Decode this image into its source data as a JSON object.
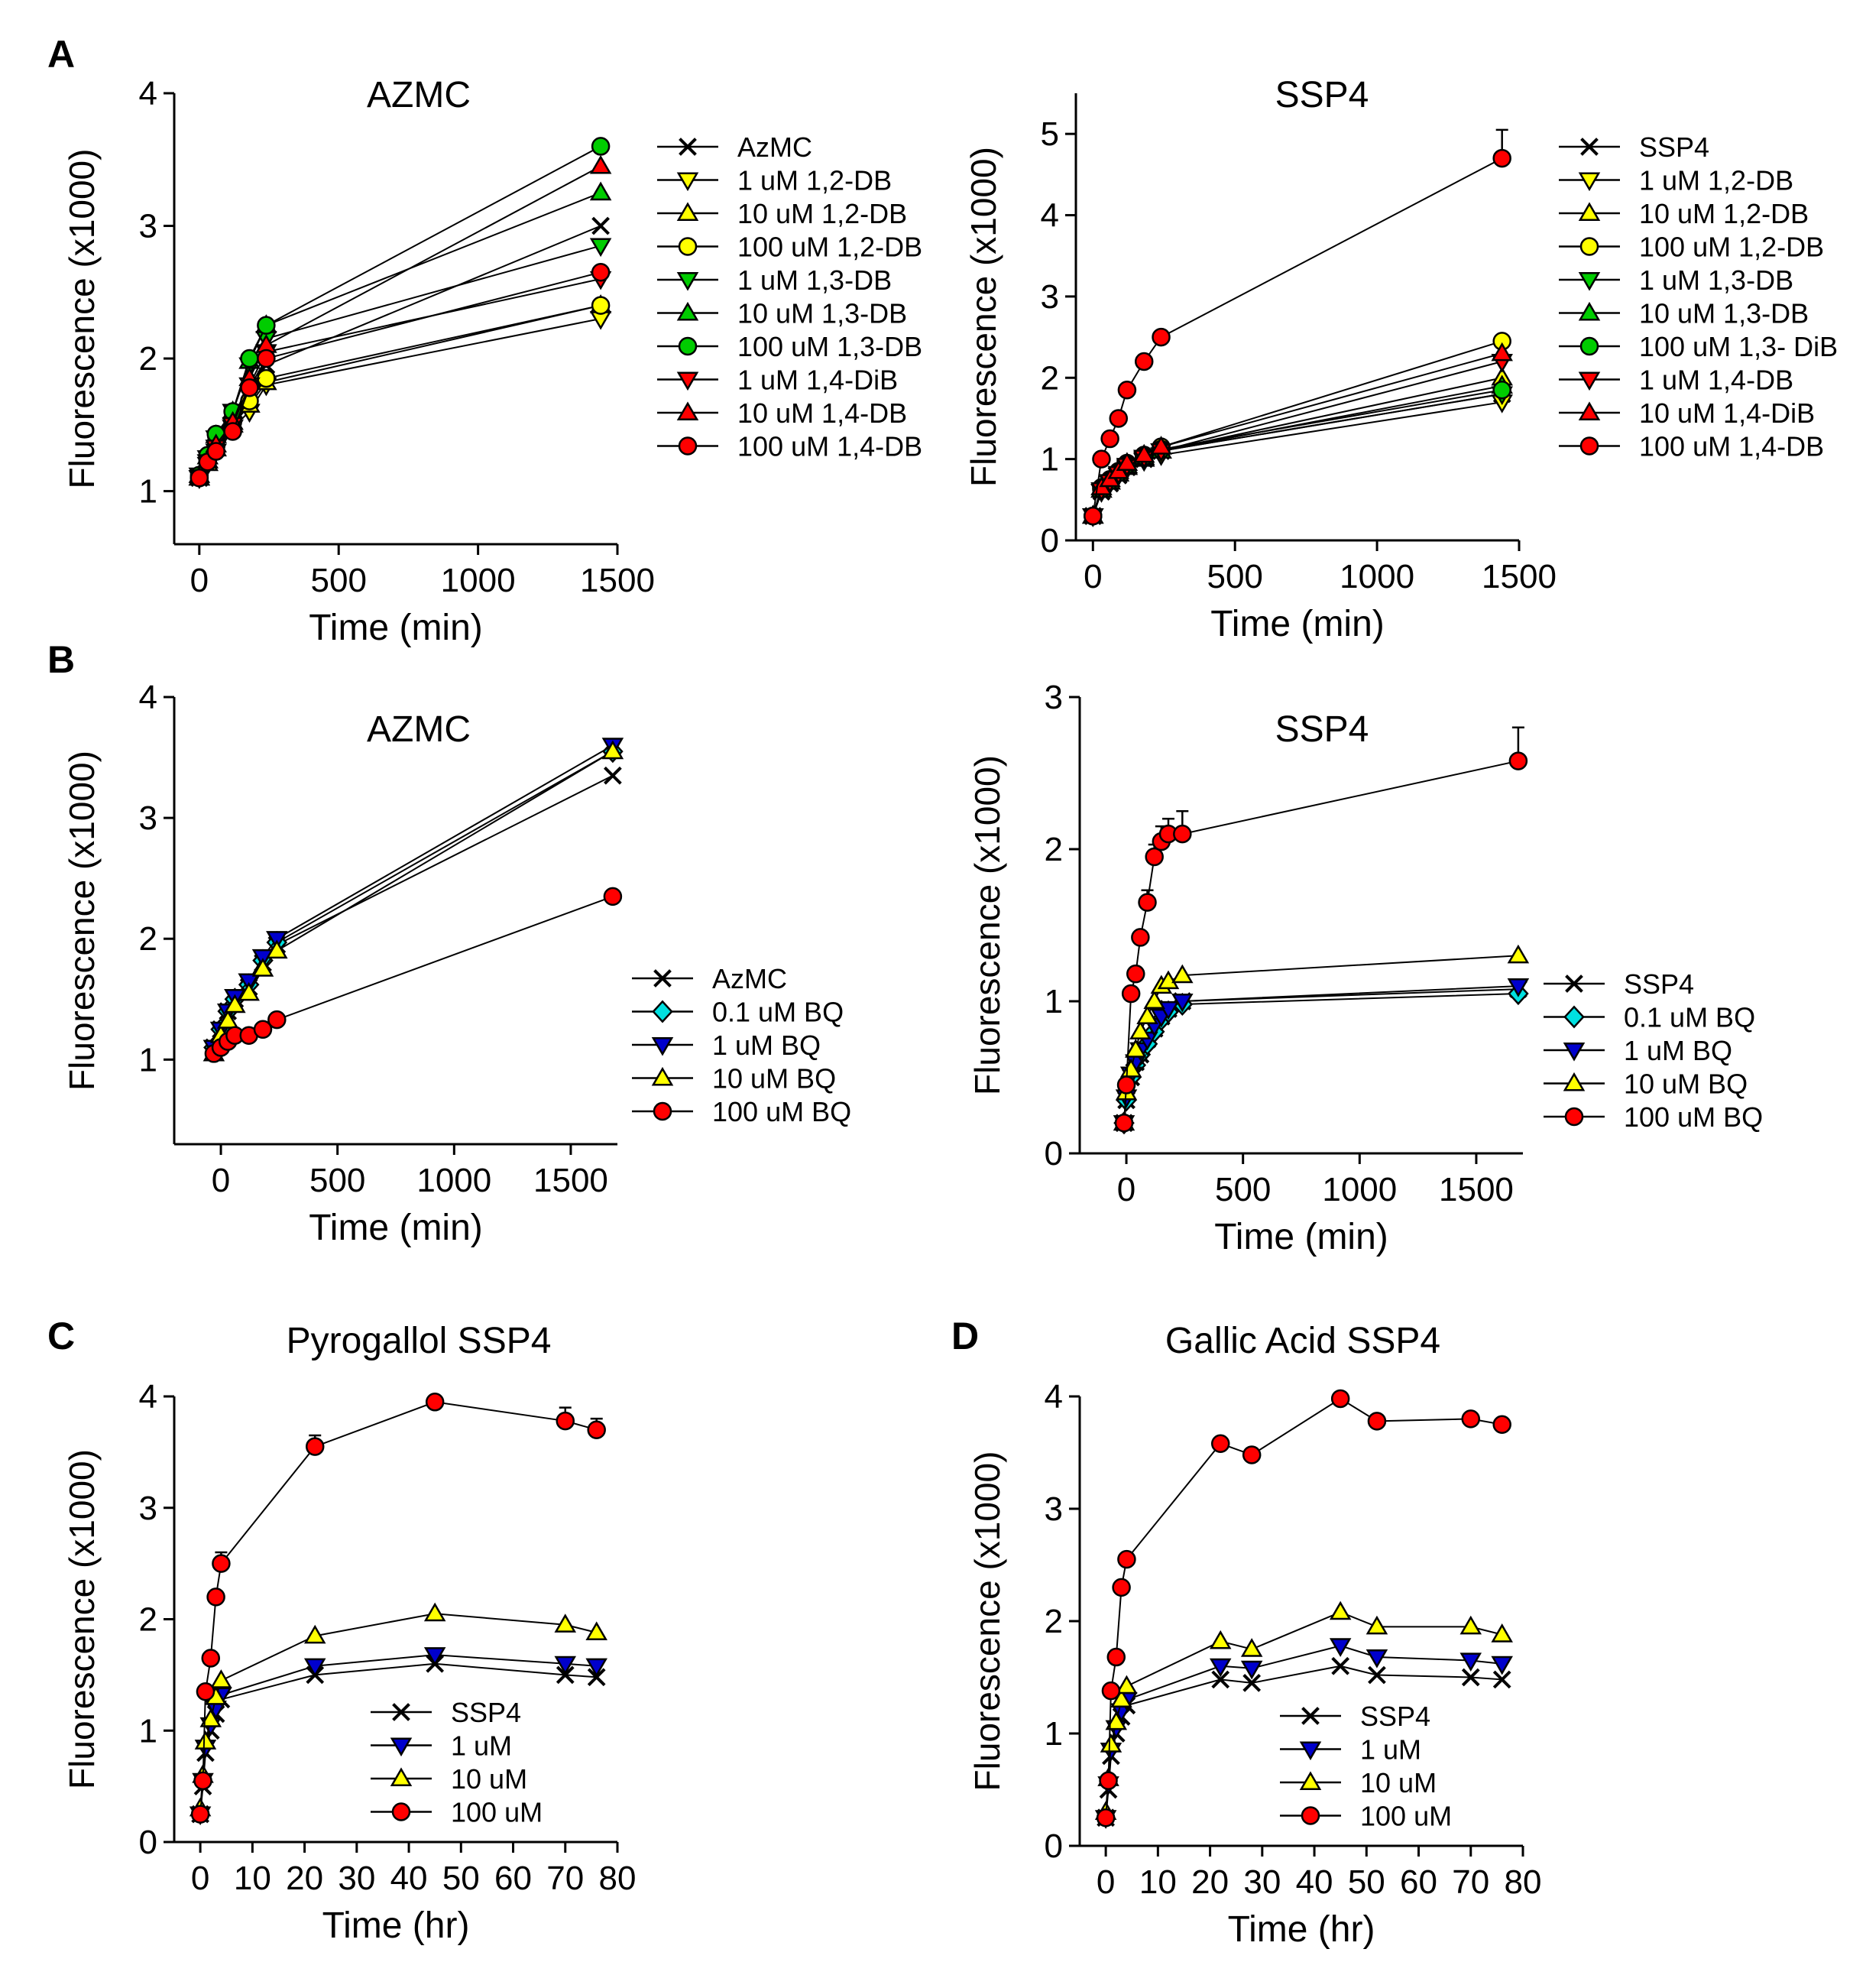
{
  "panel_labels": [
    "A",
    "B",
    "C",
    "D"
  ],
  "chart_data": [
    {
      "id": "A-left",
      "panel": "A",
      "type": "line",
      "title": "AZMC",
      "xlabel": "Time (min)",
      "ylabel": "Fluorescence (x1000)",
      "xlim": [
        -90,
        1500
      ],
      "ylim": [
        0.6,
        4
      ],
      "xticks": [
        0,
        500,
        1000,
        1500
      ],
      "yticks": [
        1,
        2,
        3,
        4
      ],
      "x": [
        0,
        30,
        60,
        120,
        180,
        240,
        1440
      ],
      "series": [
        {
          "name": "AzMC",
          "marker": "x",
          "color": "#000000",
          "values": [
            1.1,
            1.22,
            1.35,
            1.5,
            1.75,
            1.95,
            3.0
          ]
        },
        {
          "name": "1 uM 1,2-DB",
          "marker": "tri-down",
          "color": "#ffff00",
          "values": [
            1.1,
            1.2,
            1.3,
            1.48,
            1.6,
            1.8,
            2.3
          ]
        },
        {
          "name": "10 uM 1,2-DB",
          "marker": "tri-up",
          "color": "#ffff00",
          "values": [
            1.1,
            1.21,
            1.32,
            1.5,
            1.65,
            1.82,
            2.4
          ]
        },
        {
          "name": "100 uM 1,2-DB",
          "marker": "circle",
          "color": "#ffff00",
          "values": [
            1.1,
            1.22,
            1.34,
            1.52,
            1.68,
            1.85,
            2.4
          ]
        },
        {
          "name": "1 uM 1,3-DB",
          "marker": "tri-down",
          "color": "#00cc00",
          "values": [
            1.12,
            1.25,
            1.4,
            1.6,
            1.95,
            2.15,
            2.85
          ]
        },
        {
          "name": "10 uM 1,3-DB",
          "marker": "tri-up",
          "color": "#00cc00",
          "values": [
            1.12,
            1.26,
            1.42,
            1.6,
            1.98,
            2.25,
            3.25
          ]
        },
        {
          "name": "100 uM 1,3-DB",
          "marker": "circle",
          "color": "#00cc00",
          "values": [
            1.12,
            1.27,
            1.43,
            1.6,
            2.0,
            2.25,
            3.6
          ]
        },
        {
          "name": "1 uM 1,4-DiB",
          "marker": "tri-down",
          "color": "#ff0000",
          "values": [
            1.1,
            1.22,
            1.33,
            1.5,
            1.8,
            2.05,
            2.6
          ]
        },
        {
          "name": "10 uM 1,4-DB",
          "marker": "tri-up",
          "color": "#ff0000",
          "values": [
            1.1,
            1.23,
            1.35,
            1.52,
            1.85,
            2.1,
            3.45
          ]
        },
        {
          "name": "100 uM 1,4-DB",
          "marker": "circle",
          "color": "#ff0000",
          "values": [
            1.1,
            1.22,
            1.3,
            1.45,
            1.78,
            2.0,
            2.65
          ]
        }
      ]
    },
    {
      "id": "A-right",
      "panel": "A",
      "type": "line",
      "title": "SSP4",
      "xlabel": "Time (min)",
      "ylabel": "Fluorescence (x1000)",
      "xlim": [
        -60,
        1500
      ],
      "ylim": [
        0,
        5.5
      ],
      "xticks": [
        0,
        500,
        1000,
        1500
      ],
      "yticks": [
        0,
        1,
        2,
        3,
        4,
        5
      ],
      "x": [
        0,
        30,
        60,
        90,
        120,
        180,
        240,
        1440
      ],
      "series": [
        {
          "name": "SSP4",
          "marker": "x",
          "color": "#000000",
          "values": [
            0.3,
            0.6,
            0.7,
            0.8,
            0.9,
            1.0,
            1.1,
            1.8
          ]
        },
        {
          "name": "1 uM 1,2-DB",
          "marker": "tri-down",
          "color": "#ffff00",
          "values": [
            0.3,
            0.6,
            0.7,
            0.8,
            0.88,
            0.98,
            1.05,
            1.7
          ]
        },
        {
          "name": "10 uM 1,2-DB",
          "marker": "tri-up",
          "color": "#ffff00",
          "values": [
            0.3,
            0.62,
            0.72,
            0.82,
            0.9,
            1.0,
            1.1,
            2.0
          ]
        },
        {
          "name": "100 uM 1,2-DB",
          "marker": "circle",
          "color": "#ffff00",
          "values": [
            0.3,
            0.65,
            0.75,
            0.85,
            0.95,
            1.05,
            1.15,
            2.45
          ]
        },
        {
          "name": "1 uM 1,3-DB",
          "marker": "tri-down",
          "color": "#00cc00",
          "values": [
            0.3,
            0.6,
            0.7,
            0.8,
            0.9,
            1.0,
            1.1,
            1.8
          ]
        },
        {
          "name": "10 uM 1,3-DB",
          "marker": "tri-up",
          "color": "#00cc00",
          "values": [
            0.3,
            0.62,
            0.72,
            0.82,
            0.92,
            1.02,
            1.1,
            1.9
          ]
        },
        {
          "name": "100 uM 1,3- DiB",
          "marker": "circle",
          "color": "#00cc00",
          "values": [
            0.3,
            0.63,
            0.73,
            0.83,
            0.93,
            1.03,
            1.12,
            1.85
          ]
        },
        {
          "name": "1 uM 1,4-DB",
          "marker": "tri-down",
          "color": "#ff0000",
          "values": [
            0.3,
            0.62,
            0.72,
            0.82,
            0.92,
            1.02,
            1.1,
            2.2
          ]
        },
        {
          "name": "10 uM 1,4-DiB",
          "marker": "tri-up",
          "color": "#ff0000",
          "values": [
            0.3,
            0.65,
            0.75,
            0.85,
            0.95,
            1.05,
            1.15,
            2.3
          ]
        },
        {
          "name": "100 uM 1,4-DB",
          "marker": "circle",
          "color": "#ff0000",
          "values": [
            0.3,
            1.0,
            1.25,
            1.5,
            1.85,
            2.2,
            2.5,
            4.7
          ],
          "errors": [
            0,
            0,
            0,
            0,
            0,
            0,
            0.05,
            0.35
          ]
        }
      ]
    },
    {
      "id": "B-left",
      "panel": "B",
      "type": "line",
      "title": "AZMC",
      "xlabel": "Time (min)",
      "ylabel": "Fluorescence (x1000)",
      "xlim": [
        -200,
        1700
      ],
      "ylim": [
        0.3,
        4
      ],
      "xticks": [
        0,
        500,
        1000,
        1500
      ],
      "yticks": [
        1,
        2,
        3,
        4
      ],
      "x": [
        -30,
        0,
        30,
        60,
        120,
        180,
        240,
        1680
      ],
      "series": [
        {
          "name": "AzMC",
          "marker": "x",
          "color": "#000000",
          "values": [
            1.1,
            1.25,
            1.4,
            1.5,
            1.6,
            1.8,
            1.95,
            3.35
          ]
        },
        {
          "name": "0.1 uM BQ",
          "marker": "diamond",
          "color": "#00e0e0",
          "values": [
            1.1,
            1.25,
            1.4,
            1.5,
            1.62,
            1.82,
            1.97,
            3.55
          ]
        },
        {
          "name": "1 uM BQ",
          "marker": "tri-down",
          "color": "#0000cc",
          "values": [
            1.1,
            1.25,
            1.4,
            1.52,
            1.65,
            1.85,
            2.0,
            3.6
          ]
        },
        {
          "name": "10 uM BQ",
          "marker": "tri-up",
          "color": "#ffff00",
          "values": [
            1.05,
            1.2,
            1.32,
            1.45,
            1.55,
            1.75,
            1.9,
            3.55
          ]
        },
        {
          "name": "100 uM BQ",
          "marker": "circle",
          "color": "#ff0000",
          "values": [
            1.05,
            1.1,
            1.15,
            1.2,
            1.2,
            1.25,
            1.33,
            2.35
          ]
        }
      ]
    },
    {
      "id": "B-right",
      "panel": "B",
      "type": "line",
      "title": "SSP4",
      "xlabel": "Time (min)",
      "ylabel": "Fluorescence (x1000)",
      "xlim": [
        -200,
        1700
      ],
      "ylim": [
        0,
        3
      ],
      "xticks": [
        0,
        500,
        1000,
        1500
      ],
      "yticks": [
        0,
        1,
        2,
        3
      ],
      "x": [
        -10,
        0,
        20,
        40,
        60,
        90,
        120,
        150,
        180,
        240,
        1680
      ],
      "series": [
        {
          "name": "SSP4",
          "marker": "x",
          "color": "#000000",
          "values": [
            0.2,
            0.35,
            0.5,
            0.6,
            0.65,
            0.75,
            0.82,
            0.9,
            0.95,
            1.0,
            1.08
          ]
        },
        {
          "name": "0.1 uM BQ",
          "marker": "diamond",
          "color": "#00e0e0",
          "values": [
            0.2,
            0.35,
            0.5,
            0.58,
            0.65,
            0.72,
            0.8,
            0.88,
            0.93,
            0.98,
            1.05
          ]
        },
        {
          "name": "1 uM BQ",
          "marker": "tri-down",
          "color": "#0000cc",
          "values": [
            0.2,
            0.37,
            0.52,
            0.6,
            0.68,
            0.75,
            0.84,
            0.9,
            0.95,
            1.0,
            1.1
          ]
        },
        {
          "name": "10 uM BQ",
          "marker": "tri-up",
          "color": "#ffff00",
          "values": [
            0.2,
            0.4,
            0.55,
            0.68,
            0.8,
            0.9,
            1.0,
            1.1,
            1.13,
            1.17,
            1.3
          ]
        },
        {
          "name": "100 uM BQ",
          "marker": "circle",
          "color": "#ff0000",
          "values": [
            0.2,
            0.45,
            1.05,
            1.18,
            1.42,
            1.65,
            1.95,
            2.05,
            2.1,
            2.1,
            2.58
          ],
          "errors": [
            0,
            0,
            0,
            0,
            0,
            0.08,
            0.08,
            0.1,
            0.1,
            0.15,
            0.22
          ]
        }
      ]
    },
    {
      "id": "C",
      "panel": "C",
      "type": "line",
      "title": "Pyrogallol SSP4",
      "xlabel": "Time (hr)",
      "ylabel": "Fluorescence (x1000)",
      "xlim": [
        -5,
        80
      ],
      "ylim": [
        0,
        4
      ],
      "xticks": [
        0,
        10,
        20,
        30,
        40,
        50,
        60,
        70,
        80
      ],
      "yticks": [
        0,
        1,
        2,
        3,
        4
      ],
      "x": [
        0,
        0.5,
        1,
        2,
        3,
        4,
        22,
        45,
        70,
        76
      ],
      "series": [
        {
          "name": "SSP4",
          "marker": "x",
          "color": "#000000",
          "values": [
            0.25,
            0.5,
            0.8,
            1.0,
            1.15,
            1.28,
            1.5,
            1.6,
            1.5,
            1.48
          ]
        },
        {
          "name": "1 uM",
          "marker": "tri-down",
          "color": "#0000cc",
          "values": [
            0.25,
            0.55,
            0.85,
            1.05,
            1.2,
            1.32,
            1.58,
            1.68,
            1.6,
            1.58
          ]
        },
        {
          "name": "10 uM",
          "marker": "tri-up",
          "color": "#ffff00",
          "values": [
            0.3,
            0.6,
            0.9,
            1.1,
            1.3,
            1.45,
            1.85,
            2.05,
            1.95,
            1.88
          ]
        },
        {
          "name": "100 uM",
          "marker": "circle",
          "color": "#ff0000",
          "values": [
            0.25,
            0.55,
            1.35,
            1.65,
            2.2,
            2.5,
            3.55,
            3.95,
            3.78,
            3.7
          ],
          "errors": [
            0,
            0,
            0,
            0,
            0,
            0.1,
            0.1,
            0,
            0.12,
            0.1
          ]
        }
      ]
    },
    {
      "id": "D",
      "panel": "D",
      "type": "line",
      "title": "Gallic Acid SSP4",
      "xlabel": "Time (hr)",
      "ylabel": "Fluorescence (x1000)",
      "xlim": [
        -5,
        80
      ],
      "ylim": [
        0,
        4
      ],
      "xticks": [
        0,
        10,
        20,
        30,
        40,
        50,
        60,
        70,
        80
      ],
      "yticks": [
        0,
        1,
        2,
        3,
        4
      ],
      "x": [
        0,
        0.5,
        1,
        2,
        3,
        4,
        22,
        28,
        45,
        52,
        70,
        76
      ],
      "series": [
        {
          "name": "SSP4",
          "marker": "x",
          "color": "#000000",
          "values": [
            0.25,
            0.5,
            0.8,
            1.0,
            1.15,
            1.25,
            1.48,
            1.45,
            1.6,
            1.52,
            1.5,
            1.48
          ]
        },
        {
          "name": "1 uM",
          "marker": "tri-down",
          "color": "#0000cc",
          "values": [
            0.25,
            0.55,
            0.85,
            1.05,
            1.2,
            1.3,
            1.6,
            1.58,
            1.78,
            1.68,
            1.65,
            1.62
          ]
        },
        {
          "name": "10 uM",
          "marker": "tri-up",
          "color": "#ffff00",
          "values": [
            0.3,
            0.6,
            0.9,
            1.1,
            1.3,
            1.42,
            1.82,
            1.75,
            2.08,
            1.95,
            1.95,
            1.88
          ]
        },
        {
          "name": "100 uM",
          "marker": "circle",
          "color": "#ff0000",
          "values": [
            0.25,
            0.58,
            1.38,
            1.68,
            2.3,
            2.55,
            3.58,
            3.48,
            3.98,
            3.78,
            3.8,
            3.75
          ]
        }
      ]
    }
  ]
}
